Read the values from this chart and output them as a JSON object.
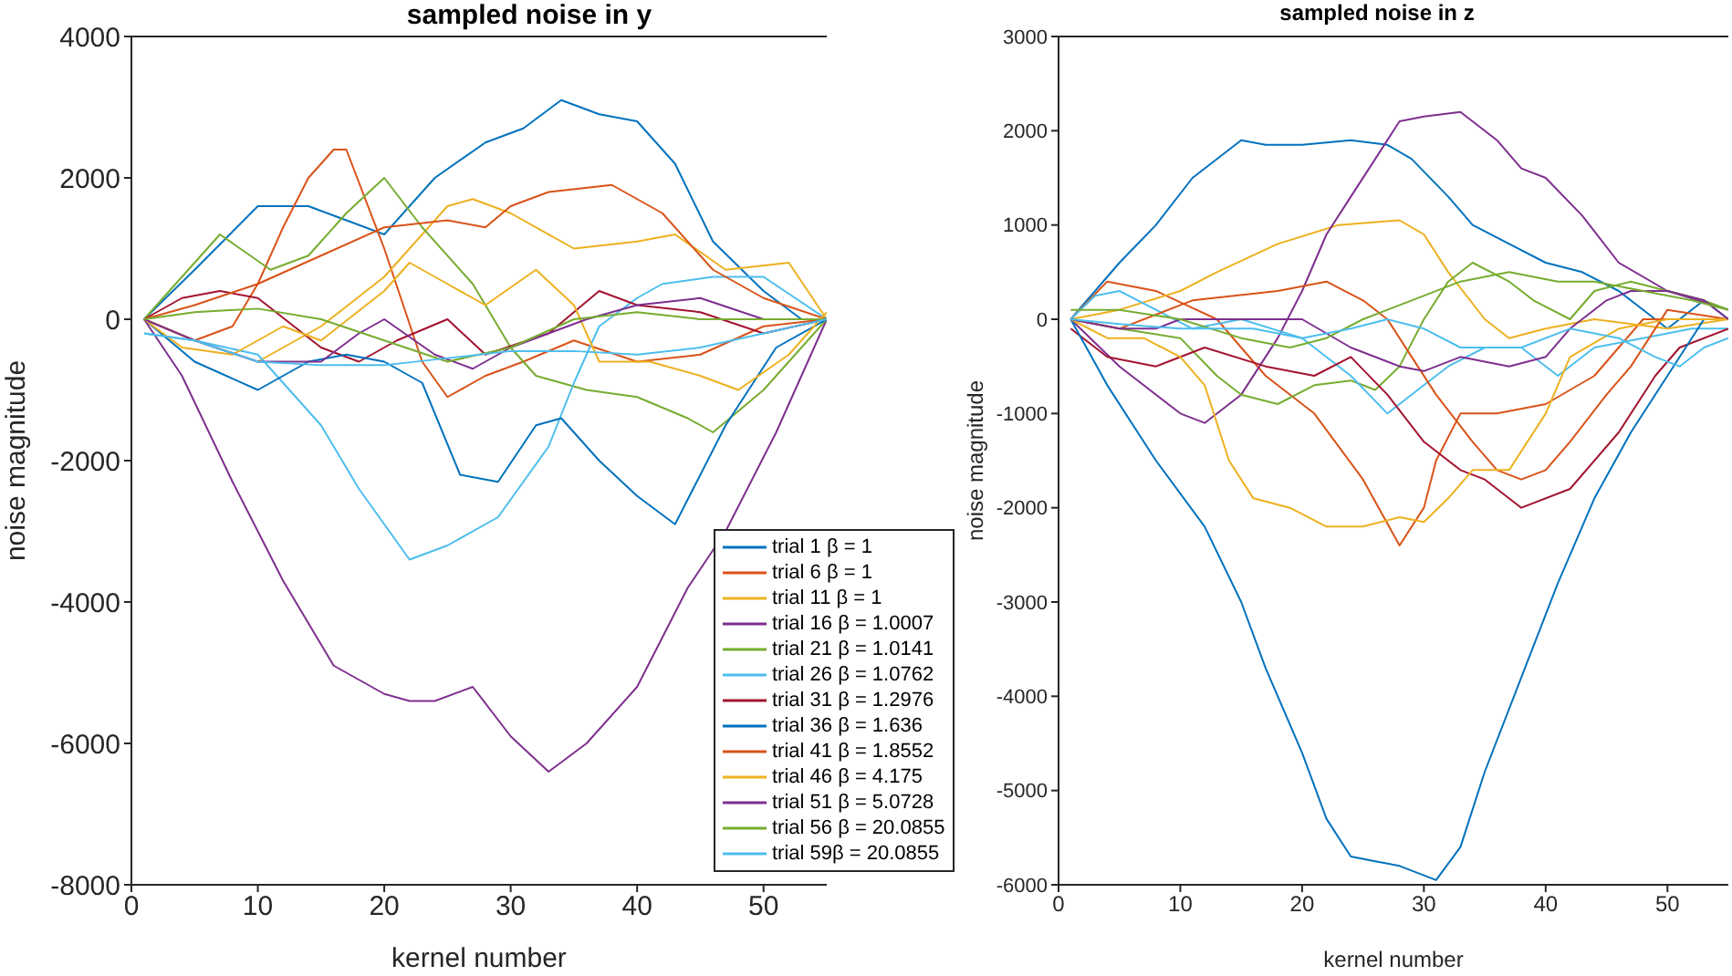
{
  "chart_data": [
    {
      "type": "line",
      "title": "sampled noise in y",
      "xlabel": "kernel number",
      "ylabel": "noise magnitude",
      "xlim": [
        0,
        55
      ],
      "xticks": [
        0,
        10,
        20,
        30,
        40,
        50
      ],
      "ylim": [
        -8000,
        4000
      ],
      "yticks": [
        -8000,
        -6000,
        -4000,
        -2000,
        0,
        2000,
        4000
      ],
      "grid": false,
      "legend": "bottom right",
      "series": [
        {
          "name": "trial 1 β = 1",
          "color": "#0072bd",
          "x": [
            1,
            5,
            10,
            14,
            17,
            20,
            24,
            28,
            31,
            34,
            37,
            40,
            43,
            46,
            50,
            53,
            55
          ],
          "values": [
            0,
            700,
            1600,
            1600,
            1400,
            1200,
            2000,
            2500,
            2700,
            3100,
            2900,
            2800,
            2200,
            1100,
            400,
            0,
            0
          ]
        },
        {
          "name": "trial 6 β = 1",
          "color": "#d95319",
          "x": [
            1,
            5,
            8,
            10,
            12,
            14,
            16,
            17,
            20,
            23,
            25,
            28,
            31,
            35,
            40,
            45,
            50,
            55
          ],
          "values": [
            0,
            -300,
            -100,
            500,
            1300,
            2000,
            2400,
            2400,
            1000,
            -600,
            -1100,
            -800,
            -600,
            -300,
            -600,
            -500,
            -100,
            0
          ]
        },
        {
          "name": "trial 11 β = 1",
          "color": "#edb120",
          "x": [
            1,
            5,
            10,
            15,
            20,
            25,
            27,
            30,
            35,
            40,
            43,
            47,
            52,
            55
          ],
          "values": [
            0,
            -300,
            -600,
            -100,
            600,
            1600,
            1700,
            1500,
            1000,
            1100,
            1200,
            700,
            800,
            0
          ]
        },
        {
          "name": "trial 16 β = 1.0007",
          "color": "#7e2f8e",
          "x": [
            1,
            4,
            8,
            12,
            16,
            20,
            22,
            24,
            27,
            30,
            33,
            36,
            40,
            44,
            47,
            51,
            55
          ],
          "values": [
            0,
            -800,
            -2300,
            -3700,
            -4900,
            -5300,
            -5400,
            -5400,
            -5200,
            -5900,
            -6400,
            -6000,
            -5200,
            -3800,
            -3000,
            -1600,
            0
          ]
        },
        {
          "name": "trial 21 β = 1.0141",
          "color": "#77ac30",
          "x": [
            1,
            4,
            7,
            11,
            14,
            17,
            20,
            23,
            27,
            30,
            32,
            36,
            40,
            44,
            46,
            50,
            55
          ],
          "values": [
            0,
            600,
            1200,
            700,
            900,
            1500,
            2000,
            1300,
            500,
            -400,
            -800,
            -1000,
            -1100,
            -1400,
            -1600,
            -1000,
            0
          ]
        },
        {
          "name": "trial 26 β = 1.0762",
          "color": "#4dbeee",
          "x": [
            1,
            5,
            10,
            15,
            18,
            22,
            25,
            29,
            33,
            35,
            37,
            40,
            42,
            46,
            50,
            55
          ],
          "values": [
            -200,
            -300,
            -500,
            -1500,
            -2400,
            -3400,
            -3200,
            -2800,
            -1800,
            -900,
            -100,
            300,
            500,
            600,
            600,
            0
          ]
        },
        {
          "name": "trial 31 β = 1.2976",
          "color": "#a2142f",
          "x": [
            1,
            4,
            7,
            10,
            15,
            18,
            21,
            25,
            28,
            33,
            37,
            40,
            45,
            50,
            55
          ],
          "values": [
            0,
            300,
            400,
            300,
            -400,
            -600,
            -300,
            0,
            -500,
            -200,
            400,
            200,
            100,
            -200,
            0
          ]
        },
        {
          "name": "trial 36 β = 1.636",
          "color": "#0072bd",
          "x": [
            1,
            5,
            10,
            14,
            17,
            20,
            23,
            26,
            29,
            32,
            34,
            37,
            40,
            43,
            47,
            51,
            55
          ],
          "values": [
            0,
            -600,
            -1000,
            -600,
            -500,
            -600,
            -900,
            -2200,
            -2300,
            -1500,
            -1400,
            -2000,
            -2500,
            -2900,
            -1500,
            -400,
            0
          ]
        },
        {
          "name": "trial 41 β = 1.8552",
          "color": "#d95319",
          "x": [
            1,
            5,
            10,
            15,
            20,
            25,
            28,
            30,
            33,
            38,
            42,
            46,
            50,
            55
          ],
          "values": [
            0,
            200,
            500,
            900,
            1300,
            1400,
            1300,
            1600,
            1800,
            1900,
            1500,
            700,
            300,
            0
          ]
        },
        {
          "name": "trial 46 β = 4.175",
          "color": "#edb120",
          "x": [
            1,
            4,
            8,
            12,
            15,
            20,
            22,
            25,
            28,
            32,
            35,
            37,
            41,
            45,
            48,
            52,
            55
          ],
          "values": [
            0,
            -400,
            -500,
            -100,
            -300,
            400,
            800,
            500,
            200,
            700,
            200,
            -600,
            -600,
            -800,
            -1000,
            -500,
            100
          ]
        },
        {
          "name": "trial 51 β = 5.0728",
          "color": "#7e2f8e",
          "x": [
            1,
            5,
            10,
            15,
            18,
            20,
            24,
            27,
            30,
            33,
            36,
            40,
            45,
            50,
            55
          ],
          "values": [
            0,
            -300,
            -600,
            -600,
            -200,
            0,
            -500,
            -700,
            -400,
            -200,
            0,
            200,
            300,
            0,
            0
          ]
        },
        {
          "name": "trial 56 β = 20.0855",
          "color": "#77ac30",
          "x": [
            1,
            5,
            10,
            15,
            20,
            25,
            30,
            35,
            40,
            45,
            50,
            55
          ],
          "values": [
            0,
            100,
            150,
            0,
            -300,
            -600,
            -400,
            0,
            100,
            0,
            0,
            0
          ]
        },
        {
          "name": "trial 59β = 20.0855",
          "color": "#4dbeee",
          "x": [
            1,
            5,
            10,
            15,
            20,
            25,
            30,
            35,
            40,
            45,
            50,
            55
          ],
          "values": [
            -200,
            -300,
            -600,
            -650,
            -650,
            -550,
            -450,
            -450,
            -500,
            -400,
            -200,
            0
          ]
        }
      ]
    },
    {
      "type": "line",
      "title": "sampled noise in z",
      "xlabel": "kernel number",
      "ylabel": "noise magnitude",
      "xlim": [
        0,
        55
      ],
      "xticks": [
        0,
        10,
        20,
        30,
        40,
        50
      ],
      "ylim": [
        -6000,
        3000
      ],
      "yticks": [
        -6000,
        -5000,
        -4000,
        -3000,
        -2000,
        -1000,
        0,
        1000,
        2000,
        3000
      ],
      "grid": false,
      "legend": false,
      "series": [
        {
          "color": "#0072bd",
          "x": [
            1,
            5,
            8,
            11,
            15,
            17,
            20,
            24,
            27,
            29,
            32,
            34,
            37,
            40,
            43,
            46,
            50,
            53,
            55
          ],
          "values": [
            0,
            600,
            1000,
            1500,
            1900,
            1850,
            1850,
            1900,
            1850,
            1700,
            1300,
            1000,
            800,
            600,
            500,
            300,
            -100,
            200,
            0
          ]
        },
        {
          "color": "#d95319",
          "x": [
            1,
            4,
            8,
            13,
            17,
            21,
            25,
            28,
            30,
            31,
            33,
            36,
            40,
            44,
            48,
            51,
            55
          ],
          "values": [
            0,
            400,
            300,
            0,
            -600,
            -1000,
            -1700,
            -2400,
            -2000,
            -1500,
            -1000,
            -1000,
            -900,
            -600,
            0,
            0,
            0
          ]
        },
        {
          "color": "#edb120",
          "x": [
            1,
            5,
            10,
            13,
            18,
            23,
            28,
            30,
            32,
            35,
            37,
            40,
            44,
            50,
            55
          ],
          "values": [
            0,
            100,
            300,
            500,
            800,
            1000,
            1050,
            900,
            500,
            0,
            -200,
            -100,
            0,
            -100,
            0
          ]
        },
        {
          "color": "#7e2f8e",
          "x": [
            1,
            5,
            10,
            12,
            15,
            18,
            20,
            22,
            24,
            26,
            28,
            30,
            33,
            36,
            38,
            40,
            43,
            46,
            50,
            55
          ],
          "values": [
            0,
            -500,
            -1000,
            -1100,
            -800,
            -200,
            300,
            900,
            1300,
            1700,
            2100,
            2150,
            2200,
            1900,
            1600,
            1500,
            1100,
            600,
            300,
            100
          ]
        },
        {
          "color": "#77ac30",
          "x": [
            1,
            5,
            10,
            13,
            15,
            18,
            21,
            24,
            26,
            28,
            30,
            32,
            34,
            37,
            39,
            42,
            44,
            47,
            50,
            53,
            55
          ],
          "values": [
            0,
            -100,
            -200,
            -600,
            -800,
            -900,
            -700,
            -650,
            -750,
            -500,
            0,
            400,
            600,
            400,
            200,
            0,
            300,
            400,
            300,
            200,
            100
          ]
        },
        {
          "color": "#4dbeee",
          "x": [
            1,
            3,
            5,
            8,
            11,
            15,
            20,
            24,
            27,
            30,
            32,
            35,
            38,
            41,
            44,
            48,
            52,
            55
          ],
          "values": [
            0,
            250,
            300,
            100,
            -100,
            0,
            -200,
            -600,
            -1000,
            -700,
            -500,
            -300,
            -300,
            -600,
            -300,
            -200,
            -100,
            -100
          ]
        },
        {
          "color": "#a2142f",
          "x": [
            1,
            4,
            8,
            12,
            17,
            21,
            24,
            27,
            30,
            33,
            35,
            38,
            42,
            46,
            49,
            51,
            55
          ],
          "values": [
            -100,
            -400,
            -500,
            -300,
            -500,
            -600,
            -400,
            -800,
            -1300,
            -1600,
            -1700,
            -2000,
            -1800,
            -1200,
            -600,
            -300,
            -100
          ]
        },
        {
          "color": "#0072bd",
          "x": [
            1,
            4,
            8,
            12,
            15,
            17,
            20,
            22,
            24,
            26,
            28,
            30,
            31,
            33,
            35,
            38,
            41,
            44,
            47,
            50,
            53,
            55
          ],
          "values": [
            0,
            -700,
            -1500,
            -2200,
            -3000,
            -3700,
            -4600,
            -5300,
            -5700,
            -5750,
            -5800,
            -5900,
            -5950,
            -5600,
            -4800,
            -3800,
            -2800,
            -1900,
            -1200,
            -600,
            0,
            0
          ]
        },
        {
          "color": "#d95319",
          "x": [
            1,
            5,
            11,
            18,
            22,
            25,
            27,
            29,
            31,
            34,
            36,
            38,
            40,
            42,
            45,
            47,
            50,
            55
          ],
          "values": [
            0,
            -100,
            200,
            300,
            400,
            200,
            0,
            -400,
            -800,
            -1300,
            -1600,
            -1700,
            -1600,
            -1300,
            -800,
            -500,
            100,
            0
          ]
        },
        {
          "color": "#edb120",
          "x": [
            1,
            4,
            7,
            10,
            12,
            14,
            16,
            19,
            22,
            25,
            28,
            30,
            32,
            34,
            37,
            40,
            42,
            46,
            50,
            55
          ],
          "values": [
            0,
            -200,
            -200,
            -400,
            -700,
            -1500,
            -1900,
            -2000,
            -2200,
            -2200,
            -2100,
            -2150,
            -1900,
            -1600,
            -1600,
            -1000,
            -400,
            -100,
            0,
            0
          ]
        },
        {
          "color": "#7e2f8e",
          "x": [
            1,
            5,
            8,
            10,
            15,
            20,
            24,
            28,
            30,
            33,
            37,
            40,
            42,
            45,
            47,
            50,
            53,
            55
          ],
          "values": [
            0,
            -100,
            -100,
            0,
            0,
            0,
            -300,
            -500,
            -550,
            -400,
            -500,
            -400,
            -100,
            200,
            300,
            300,
            200,
            0
          ]
        },
        {
          "color": "#77ac30",
          "x": [
            1,
            5,
            10,
            15,
            19,
            22,
            25,
            29,
            33,
            37,
            41,
            44,
            48,
            52,
            55
          ],
          "values": [
            100,
            100,
            0,
            -200,
            -300,
            -200,
            0,
            200,
            400,
            500,
            400,
            400,
            300,
            200,
            100
          ]
        },
        {
          "color": "#4dbeee",
          "x": [
            1,
            5,
            10,
            16,
            20,
            24,
            27,
            30,
            33,
            36,
            38,
            42,
            46,
            49,
            51,
            53,
            55
          ],
          "values": [
            0,
            -50,
            -100,
            -100,
            -200,
            -100,
            0,
            -100,
            -300,
            -300,
            -300,
            -100,
            -200,
            -400,
            -500,
            -300,
            -200
          ]
        }
      ]
    }
  ]
}
